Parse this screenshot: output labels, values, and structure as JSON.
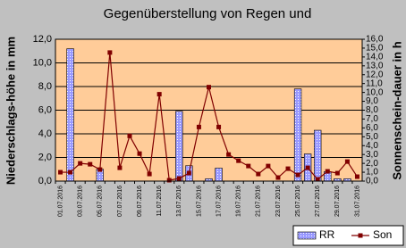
{
  "chart_data": {
    "type": "bar-line",
    "title": "Gegenüberstellung von Regen und",
    "y_label": "Niederschlags-höhe in mm",
    "y2_label": "Sonnenschein-dauer in h",
    "categories": [
      "01.07.2016",
      null,
      "03.07.2016",
      null,
      "05.07.2016",
      null,
      "07.07.2016",
      null,
      "09.07.2016",
      null,
      "11.07.2016",
      null,
      "13.07.2016",
      null,
      "15.07.2016",
      null,
      "17.07.2016",
      null,
      "19.07.2016",
      null,
      "21.07.2016",
      null,
      "23.07.2016",
      null,
      "25.07.2016",
      null,
      "27.07.2016",
      null,
      "29.07.2016",
      null,
      "31.07.2016"
    ],
    "series": [
      {
        "name": "RR",
        "color": "#9999ff",
        "kind": "bar",
        "values": [
          0,
          11.2,
          0,
          0,
          1.0,
          0,
          0,
          0,
          0,
          0,
          0,
          0,
          5.9,
          1.3,
          0,
          0.2,
          1.1,
          0,
          0,
          0,
          0,
          0,
          0,
          0,
          7.8,
          2.3,
          4.3,
          0.8,
          0.2,
          0.2,
          0
        ]
      },
      {
        "name": "Son",
        "color": "#800000",
        "kind": "line",
        "axis": "y2",
        "values": [
          1.0,
          1.0,
          2.0,
          1.9,
          1.3,
          14.5,
          1.5,
          5.1,
          3.1,
          0.8,
          9.8,
          0.1,
          0.3,
          0.9,
          6.1,
          10.6,
          6.1,
          3.0,
          2.3,
          1.7,
          0.8,
          1.7,
          0.4,
          1.4,
          0.7,
          1.5,
          0.2,
          1.1,
          0.9,
          2.2,
          0.5
        ]
      }
    ],
    "ylim": [
      0,
      12
    ],
    "yticks": [
      {
        "value": 0,
        "label": "0,0"
      },
      {
        "value": 2,
        "label": "2,0"
      },
      {
        "value": 4,
        "label": "4,0"
      },
      {
        "value": 6,
        "label": "6,0"
      },
      {
        "value": 8,
        "label": "8,0"
      },
      {
        "value": 10,
        "label": "10,0"
      },
      {
        "value": 12,
        "label": "12,0"
      }
    ],
    "y2lim": [
      0,
      16
    ],
    "y2ticks": [
      {
        "value": 0,
        "label": "0,0"
      },
      {
        "value": 1,
        "label": "1,0"
      },
      {
        "value": 2,
        "label": "2,0"
      },
      {
        "value": 3,
        "label": "3,0"
      },
      {
        "value": 4,
        "label": "4,0"
      },
      {
        "value": 5,
        "label": "5,0"
      },
      {
        "value": 6,
        "label": "6,0"
      },
      {
        "value": 7,
        "label": "7,0"
      },
      {
        "value": 8,
        "label": "8,0"
      },
      {
        "value": 9,
        "label": "9,0"
      },
      {
        "value": 10,
        "label": "10,0"
      },
      {
        "value": 11,
        "label": "11,0"
      },
      {
        "value": 12,
        "label": "12,0"
      },
      {
        "value": 13,
        "label": "13,0"
      },
      {
        "value": 14,
        "label": "14,0"
      },
      {
        "value": 15,
        "label": "15,0"
      },
      {
        "value": 16,
        "label": "16,0"
      }
    ],
    "grid": true,
    "legend": "bottom-right"
  }
}
